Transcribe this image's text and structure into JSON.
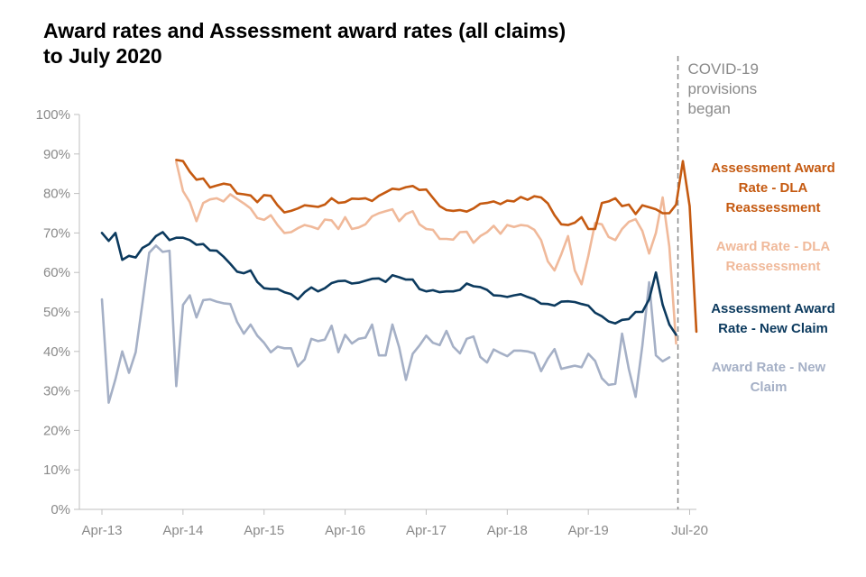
{
  "title": {
    "line1": "Award rates and Assessment award rates (all claims)",
    "line2": "to July 2020"
  },
  "annotation": {
    "lines": [
      "COVID-19",
      "provisions",
      "began"
    ],
    "at_index": 85
  },
  "colors": {
    "assessment_dla": "#c55a11",
    "award_dla": "#f0b99a",
    "assessment_new": "#0c3a5e",
    "award_new": "#a5b0c6",
    "axis": "#bfbfbf",
    "text": "#8a8a8a",
    "covid_line": "#8a8a8a"
  },
  "chart_data": {
    "type": "line",
    "title": "Award rates and Assessment award rates (all claims) to July 2020",
    "xlabel": "",
    "ylabel": "",
    "ylim": [
      0,
      100
    ],
    "y_ticks": [
      "0%",
      "10%",
      "20%",
      "30%",
      "40%",
      "50%",
      "60%",
      "70%",
      "80%",
      "90%",
      "100%"
    ],
    "x_labels": [
      {
        "label": "Apr-13",
        "index": 0
      },
      {
        "label": "Apr-14",
        "index": 12
      },
      {
        "label": "Apr-15",
        "index": 24
      },
      {
        "label": "Apr-16",
        "index": 36
      },
      {
        "label": "Apr-17",
        "index": 48
      },
      {
        "label": "Apr-18",
        "index": 60
      },
      {
        "label": "Apr-19",
        "index": 72
      },
      {
        "label": "Jul-20",
        "index": 87
      }
    ],
    "x_count": 89,
    "series": [
      {
        "name": "Assessment Award Rate - DLA Reassessment",
        "legend": [
          "Assessment Award",
          "Rate - DLA",
          "Reassessment"
        ],
        "start_index": 11,
        "values": [
          88.5,
          88.2,
          85.5,
          83.5,
          83.8,
          81.5,
          82.0,
          82.5,
          82.2,
          80.0,
          79.8,
          79.5,
          77.8,
          79.6,
          79.4,
          77.0,
          75.2,
          75.6,
          76.2,
          77.0,
          76.8,
          76.6,
          77.2,
          78.8,
          77.6,
          77.8,
          78.7,
          78.6,
          78.8,
          78.1,
          79.4,
          80.3,
          81.2,
          81.0,
          81.6,
          81.9,
          80.9,
          81.0,
          78.9,
          76.8,
          75.8,
          75.6,
          75.8,
          75.4,
          76.2,
          77.4,
          77.6,
          78.0,
          77.3,
          78.2,
          78.0,
          79.1,
          78.4,
          79.3,
          79.0,
          77.5,
          74.5,
          72.2,
          72.0,
          72.6,
          74.0,
          71.0,
          71.0,
          77.6,
          78.0,
          78.8,
          76.8,
          77.2,
          74.8,
          77.0,
          76.5,
          76.0,
          75.0,
          75.0,
          77.2,
          88.2,
          76.8,
          45.0
        ]
      },
      {
        "name": "Award Rate - DLA Reassessment",
        "legend": [
          "Award Rate - DLA",
          "Reassessment"
        ],
        "start_index": 11,
        "values": [
          88.0,
          80.6,
          77.8,
          73.0,
          77.6,
          78.5,
          78.8,
          78.0,
          79.8,
          78.6,
          77.5,
          76.2,
          73.8,
          73.3,
          74.5,
          72.0,
          70.0,
          70.2,
          71.2,
          72.0,
          71.6,
          71.0,
          73.4,
          73.2,
          71.0,
          74.0,
          71.0,
          71.4,
          72.2,
          74.2,
          75.0,
          75.5,
          76.0,
          73.0,
          74.8,
          75.5,
          72.2,
          71.0,
          70.8,
          68.5,
          68.5,
          68.3,
          70.2,
          70.3,
          67.5,
          69.2,
          70.2,
          71.8,
          69.8,
          72.0,
          71.5,
          72.0,
          71.8,
          70.8,
          68.2,
          62.8,
          60.5,
          64.6,
          69.2,
          60.5,
          57.0,
          64.2,
          72.5,
          72.2,
          69.0,
          68.2,
          71.0,
          72.8,
          73.5,
          70.5,
          64.8,
          70.0,
          79.0,
          66.5,
          42.0
        ]
      },
      {
        "name": "Assessment Award Rate - New Claim",
        "legend": [
          "Assessment Award",
          "Rate - New Claim"
        ],
        "start_index": 0,
        "values": [
          70.0,
          68.0,
          70.0,
          63.2,
          64.2,
          63.8,
          66.2,
          67.2,
          69.2,
          70.2,
          68.2,
          68.8,
          68.8,
          68.2,
          67.0,
          67.2,
          65.6,
          65.5,
          64.0,
          62.2,
          60.2,
          59.8,
          60.5,
          57.6,
          56.0,
          55.8,
          55.8,
          55.0,
          54.5,
          53.2,
          55.0,
          56.2,
          55.2,
          56.0,
          57.3,
          57.8,
          57.9,
          57.2,
          57.4,
          57.9,
          58.4,
          58.5,
          57.6,
          59.3,
          58.8,
          58.2,
          58.2,
          55.8,
          55.2,
          55.5,
          55.0,
          55.2,
          55.2,
          55.6,
          57.2,
          56.5,
          56.3,
          55.6,
          54.2,
          54.1,
          53.8,
          54.2,
          54.5,
          53.8,
          53.2,
          52.1,
          52.0,
          51.6,
          52.6,
          52.7,
          52.5,
          52.0,
          51.6,
          49.8,
          48.9,
          47.6,
          47.1,
          48.0,
          48.2,
          50.0,
          50.0,
          53.2,
          60.0,
          51.8,
          46.8,
          44.2
        ]
      },
      {
        "name": "Award Rate - New Claim",
        "legend": [
          "Award Rate - New",
          "Claim"
        ],
        "start_index": 0,
        "values": [
          53.2,
          27.0,
          33.0,
          40.0,
          34.6,
          39.8,
          52.2,
          65.0,
          66.8,
          65.2,
          65.5,
          31.2,
          51.8,
          54.2,
          48.6,
          53.0,
          53.2,
          52.6,
          52.2,
          52.0,
          47.5,
          44.5,
          46.8,
          44.0,
          42.2,
          39.8,
          41.2,
          40.8,
          40.8,
          36.2,
          38.0,
          43.2,
          42.6,
          43.0,
          46.5,
          39.8,
          44.2,
          42.0,
          43.2,
          43.5,
          46.8,
          39.0,
          39.0,
          46.8,
          41.0,
          32.8,
          39.4,
          41.5,
          44.0,
          42.2,
          41.6,
          45.2,
          41.2,
          39.5,
          43.2,
          43.8,
          38.6,
          37.2,
          40.5,
          39.6,
          38.8,
          40.2,
          40.2,
          40.0,
          39.5,
          35.0,
          38.2,
          40.6,
          35.6,
          36.0,
          36.4,
          36.0,
          39.4,
          37.6,
          33.2,
          31.5,
          31.8,
          44.5,
          35.5,
          28.5,
          41.5,
          57.5,
          39.0,
          37.5,
          38.5
        ]
      }
    ]
  }
}
